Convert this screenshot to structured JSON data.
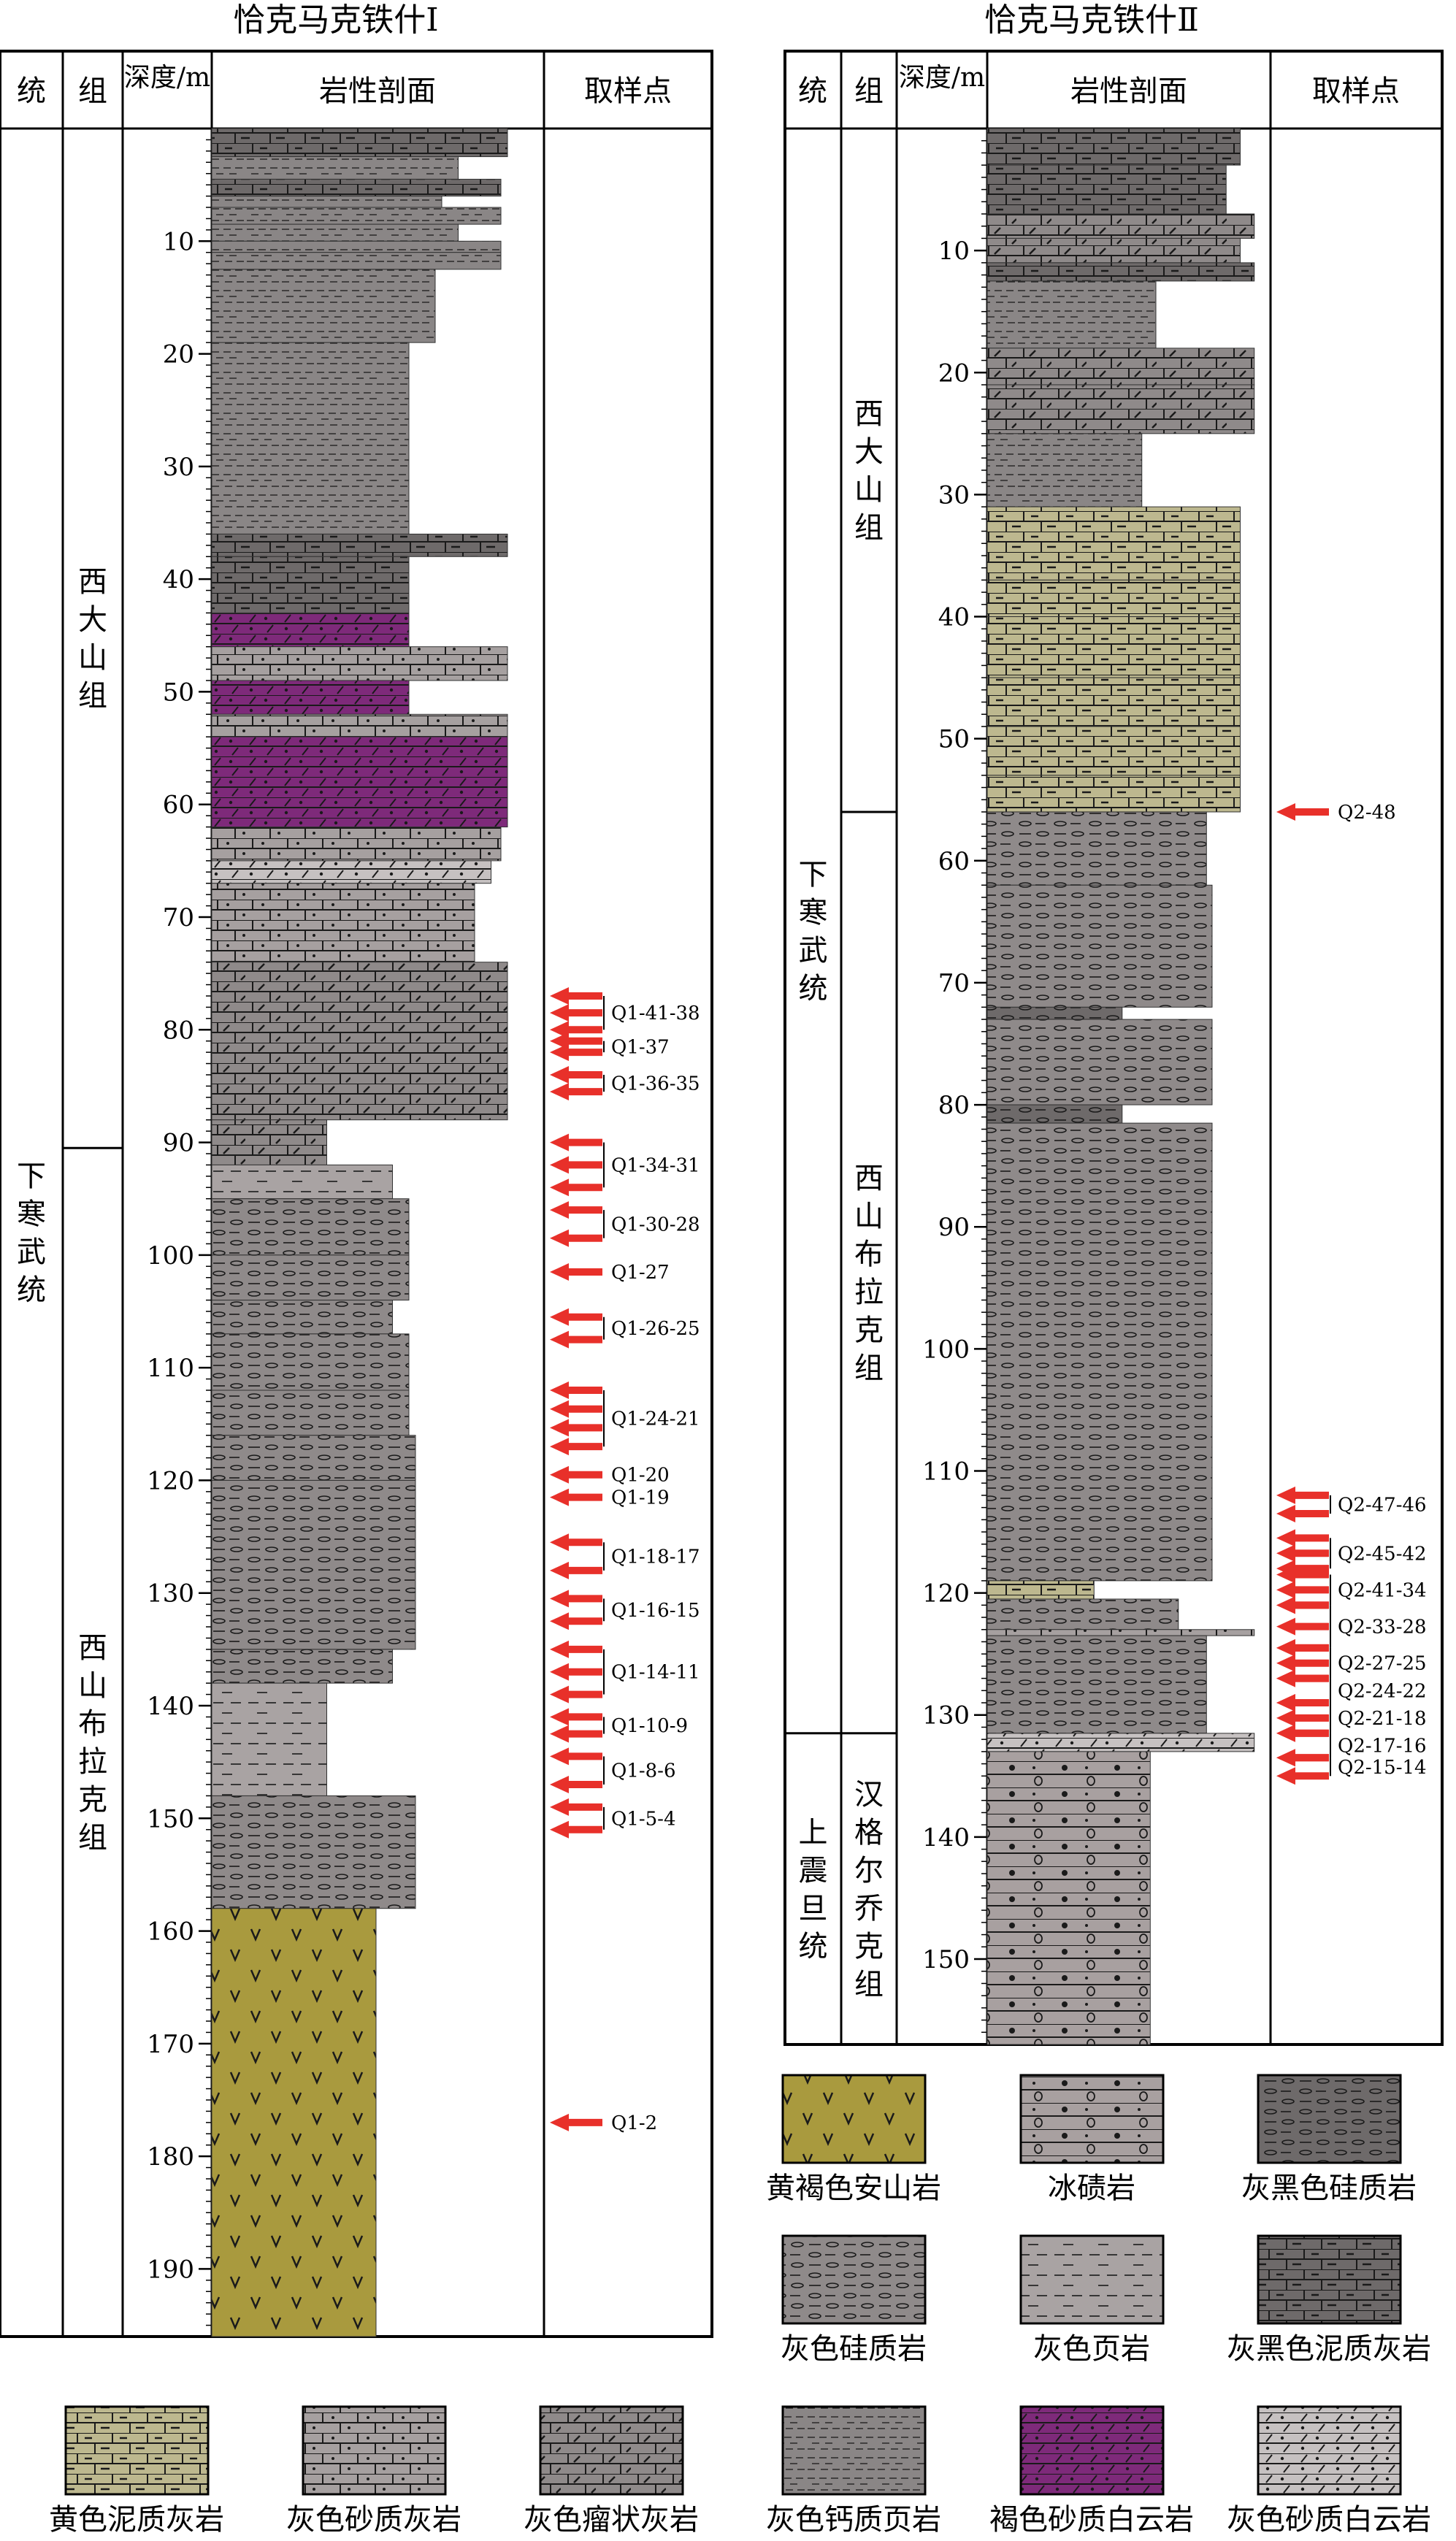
{
  "columns": [
    {
      "title": "恰克马克铁什Ⅰ",
      "headers": {
        "series": "统",
        "formation": "组",
        "depth": "深度/m",
        "lith": "岩性剖面",
        "samples": "取样点"
      },
      "depth_range_m": [
        0,
        196
      ],
      "depth_ticks": [
        "10",
        "20",
        "30",
        "40",
        "50",
        "60",
        "70",
        "80",
        "90",
        "100",
        "110",
        "120",
        "130",
        "140",
        "150",
        "160",
        "170",
        "180",
        "190"
      ],
      "series_units": [
        {
          "label": "下寒武统",
          "from": 0,
          "to": 196
        }
      ],
      "formation_units": [
        {
          "label": "西大山组",
          "from": 0,
          "to": 90.5
        },
        {
          "label": "西山布拉克组",
          "from": 90.5,
          "to": 196
        }
      ],
      "layers": [
        {
          "from": 0,
          "to": 2.5,
          "lith": "dark-marly-limestone",
          "w": 0.9
        },
        {
          "from": 2.5,
          "to": 4.5,
          "lith": "gray-calcareous-shale",
          "w": 0.75
        },
        {
          "from": 4.5,
          "to": 6,
          "lith": "dark-marly-limestone",
          "w": 0.88
        },
        {
          "from": 6,
          "to": 7,
          "lith": "gray-calcareous-shale",
          "w": 0.7
        },
        {
          "from": 7,
          "to": 8.5,
          "lith": "gray-calcareous-shale",
          "w": 0.88
        },
        {
          "from": 8.5,
          "to": 10,
          "lith": "gray-calcareous-shale",
          "w": 0.75
        },
        {
          "from": 10,
          "to": 11,
          "lith": "gray-calcareous-shale",
          "w": 0.88
        },
        {
          "from": 11,
          "to": 12.5,
          "lith": "gray-calcareous-shale",
          "w": 0.88
        },
        {
          "from": 12.5,
          "to": 19,
          "lith": "gray-calcareous-shale",
          "w": 0.68
        },
        {
          "from": 19,
          "to": 36,
          "lith": "gray-calcareous-shale",
          "w": 0.6
        },
        {
          "from": 36,
          "to": 38,
          "lith": "dark-marly-limestone",
          "w": 0.9
        },
        {
          "from": 38,
          "to": 43,
          "lith": "dark-marly-limestone",
          "w": 0.6
        },
        {
          "from": 43,
          "to": 46,
          "lith": "brown-sandy-dolomite",
          "w": 0.6
        },
        {
          "from": 46,
          "to": 49,
          "lith": "gray-sandy-limestone",
          "w": 0.9
        },
        {
          "from": 49,
          "to": 52,
          "lith": "brown-sandy-dolomite",
          "w": 0.6
        },
        {
          "from": 52,
          "to": 54,
          "lith": "gray-sandy-limestone",
          "w": 0.9
        },
        {
          "from": 54,
          "to": 62,
          "lith": "brown-sandy-dolomite",
          "w": 0.9
        },
        {
          "from": 62,
          "to": 65,
          "lith": "gray-sandy-limestone",
          "w": 0.88
        },
        {
          "from": 65,
          "to": 67,
          "lith": "gray-sandy-dolomite",
          "w": 0.85
        },
        {
          "from": 67,
          "to": 74,
          "lith": "gray-sandy-limestone",
          "w": 0.8
        },
        {
          "from": 74,
          "to": 88,
          "lith": "gray-nodular-limestone",
          "w": 0.9
        },
        {
          "from": 88,
          "to": 92,
          "lith": "gray-nodular-limestone",
          "w": 0.35
        },
        {
          "from": 92,
          "to": 95,
          "lith": "gray-shale",
          "w": 0.55
        },
        {
          "from": 95,
          "to": 100,
          "lith": "gray-siliceous-rock",
          "w": 0.6
        },
        {
          "from": 100,
          "to": 104,
          "lith": "gray-siliceous-rock",
          "w": 0.6
        },
        {
          "from": 104,
          "to": 107,
          "lith": "gray-siliceous-rock",
          "w": 0.55
        },
        {
          "from": 107,
          "to": 112,
          "lith": "gray-siliceous-rock",
          "w": 0.6
        },
        {
          "from": 112,
          "to": 116,
          "lith": "gray-siliceous-rock",
          "w": 0.6
        },
        {
          "from": 116,
          "to": 120,
          "lith": "gray-siliceous-rock",
          "w": 0.62
        },
        {
          "from": 120,
          "to": 135,
          "lith": "gray-siliceous-rock",
          "w": 0.62
        },
        {
          "from": 135,
          "to": 138,
          "lith": "gray-siliceous-rock",
          "w": 0.55
        },
        {
          "from": 138,
          "to": 148,
          "lith": "gray-shale",
          "w": 0.35
        },
        {
          "from": 148,
          "to": 158,
          "lith": "gray-siliceous-rock",
          "w": 0.62
        },
        {
          "from": 158,
          "to": 196,
          "lith": "yellow-brown-andesite",
          "w": 0.5
        }
      ],
      "samples": [
        {
          "label": "Q1-41-38",
          "from": 77,
          "to": 80
        },
        {
          "label": "Q1-37",
          "from": 81,
          "to": 82
        },
        {
          "label": "Q1-36-35",
          "from": 84,
          "to": 85.5
        },
        {
          "label": "Q1-34-31",
          "from": 90,
          "to": 94
        },
        {
          "label": "Q1-30-28",
          "from": 96,
          "to": 98.5
        },
        {
          "label": "Q1-27",
          "from": 101.5,
          "to": 101.5
        },
        {
          "label": "Q1-26-25",
          "from": 105.5,
          "to": 107.5
        },
        {
          "label": "Q1-24-21",
          "from": 112,
          "to": 117
        },
        {
          "label": "Q1-20",
          "from": 119.5,
          "to": 119.5
        },
        {
          "label": "Q1-19",
          "from": 121.5,
          "to": 121.5
        },
        {
          "label": "Q1-18-17",
          "from": 125.5,
          "to": 128
        },
        {
          "label": "Q1-16-15",
          "from": 130.5,
          "to": 132.5
        },
        {
          "label": "Q1-14-11",
          "from": 135,
          "to": 139
        },
        {
          "label": "Q1-10-9",
          "from": 141,
          "to": 142.5
        },
        {
          "label": "Q1-8-6",
          "from": 144.5,
          "to": 147
        },
        {
          "label": "Q1-5-4",
          "from": 149,
          "to": 151
        },
        {
          "label": "Q1-2",
          "from": 177,
          "to": 177
        }
      ]
    },
    {
      "title": "恰克马克铁什Ⅱ",
      "headers": {
        "series": "统",
        "formation": "组",
        "depth": "深度/m",
        "lith": "岩性剖面",
        "samples": "取样点"
      },
      "depth_range_m": [
        0,
        157
      ],
      "depth_ticks": [
        "10",
        "20",
        "30",
        "40",
        "50",
        "60",
        "70",
        "80",
        "90",
        "100",
        "110",
        "120",
        "130",
        "140",
        "150"
      ],
      "series_units": [
        {
          "label": "下寒武统",
          "from": 0,
          "to": 131.5
        },
        {
          "label": "上震旦统",
          "from": 131.5,
          "to": 157
        }
      ],
      "formation_units": [
        {
          "label": "西大山组",
          "from": 0,
          "to": 56
        },
        {
          "label": "西山布拉克组",
          "from": 56,
          "to": 131.5
        },
        {
          "label": "汉格尔乔克组",
          "from": 131.5,
          "to": 157
        }
      ],
      "layers": [
        {
          "from": 0,
          "to": 3,
          "lith": "dark-marly-limestone",
          "w": 0.9
        },
        {
          "from": 3,
          "to": 7,
          "lith": "dark-marly-limestone",
          "w": 0.85
        },
        {
          "from": 7,
          "to": 9,
          "lith": "gray-nodular-limestone",
          "w": 0.95
        },
        {
          "from": 9,
          "to": 11,
          "lith": "gray-nodular-limestone",
          "w": 0.9
        },
        {
          "from": 11,
          "to": 12.5,
          "lith": "dark-marly-limestone",
          "w": 0.95
        },
        {
          "from": 12.5,
          "to": 18,
          "lith": "gray-calcareous-shale",
          "w": 0.6
        },
        {
          "from": 18,
          "to": 21,
          "lith": "gray-nodular-limestone",
          "w": 0.95
        },
        {
          "from": 21,
          "to": 23,
          "lith": "gray-nodular-limestone",
          "w": 0.95
        },
        {
          "from": 23,
          "to": 25,
          "lith": "gray-nodular-limestone",
          "w": 0.95
        },
        {
          "from": 25,
          "to": 31,
          "lith": "gray-calcareous-shale",
          "w": 0.55
        },
        {
          "from": 31,
          "to": 37,
          "lith": "yellow-marly-limestone",
          "w": 0.9
        },
        {
          "from": 37,
          "to": 40,
          "lith": "yellow-marly-limestone",
          "w": 0.9
        },
        {
          "from": 40,
          "to": 45,
          "lith": "yellow-marly-limestone",
          "w": 0.9
        },
        {
          "from": 45,
          "to": 49,
          "lith": "yellow-marly-limestone",
          "w": 0.9
        },
        {
          "from": 49,
          "to": 53,
          "lith": "yellow-marly-limestone",
          "w": 0.9
        },
        {
          "from": 53,
          "to": 56,
          "lith": "yellow-marly-limestone",
          "w": 0.9
        },
        {
          "from": 56,
          "to": 62,
          "lith": "gray-siliceous-rock",
          "w": 0.78
        },
        {
          "from": 62,
          "to": 72,
          "lith": "gray-siliceous-rock",
          "w": 0.8
        },
        {
          "from": 72,
          "to": 73,
          "lith": "dark-siliceous-rock",
          "w": 0.48
        },
        {
          "from": 73,
          "to": 80,
          "lith": "gray-siliceous-rock",
          "w": 0.8
        },
        {
          "from": 80,
          "to": 81.5,
          "lith": "dark-siliceous-rock",
          "w": 0.48
        },
        {
          "from": 81.5,
          "to": 119,
          "lith": "gray-siliceous-rock",
          "w": 0.8
        },
        {
          "from": 119,
          "to": 120.5,
          "lith": "yellow-marly-limestone",
          "w": 0.38
        },
        {
          "from": 120.5,
          "to": 123,
          "lith": "gray-siliceous-rock",
          "w": 0.68
        },
        {
          "from": 123,
          "to": 123.5,
          "lith": "gray-sandy-limestone",
          "w": 0.95
        },
        {
          "from": 123.5,
          "to": 131.5,
          "lith": "gray-siliceous-rock",
          "w": 0.78
        },
        {
          "from": 131.5,
          "to": 133,
          "lith": "gray-sandy-dolomite",
          "w": 0.95
        },
        {
          "from": 133,
          "to": 157,
          "lith": "tillite",
          "w": 0.58
        }
      ],
      "samples": [
        {
          "label": "Q2-48",
          "from": 56,
          "to": 56
        },
        {
          "label": "Q2-47-46",
          "from": 112,
          "to": 113.5
        },
        {
          "label": "Q2-45-42",
          "from": 115.5,
          "to": 118
        },
        {
          "label": "Q2-41-34",
          "from": 118.5,
          "to": 121
        },
        {
          "label": "Q2-33-28",
          "from": 121,
          "to": 124.5
        },
        {
          "label": "Q2-27-25",
          "from": 124.5,
          "to": 127
        },
        {
          "label": "Q2-24-22",
          "from": 127,
          "to": 129
        },
        {
          "label": "Q2-21-18",
          "from": 129,
          "to": 131.5
        },
        {
          "label": "Q2-17-16",
          "from": 131.5,
          "to": 133.5
        },
        {
          "label": "Q2-15-14",
          "from": 133.5,
          "to": 135
        }
      ]
    }
  ],
  "lithology_styles": {
    "yellow-brown-andesite": {
      "fill": "#A99A3E",
      "pattern": "v"
    },
    "tillite": {
      "fill": "#A8A0A0",
      "pattern": "tillite"
    },
    "dark-siliceous-rock": {
      "fill": "#6E6A6A",
      "pattern": "ellipse"
    },
    "gray-siliceous-rock": {
      "fill": "#8F8A8A",
      "pattern": "ellipse"
    },
    "gray-shale": {
      "fill": "#A9A3A3",
      "pattern": "dash"
    },
    "dark-marly-limestone": {
      "fill": "#6E6A6A",
      "pattern": "brick-dash"
    },
    "yellow-marly-limestone": {
      "fill": "#BDB88F",
      "pattern": "brick-dash"
    },
    "gray-sandy-limestone": {
      "fill": "#A6A0A0",
      "pattern": "brick-dot"
    },
    "gray-nodular-limestone": {
      "fill": "#8F8A8A",
      "pattern": "brick-nodule"
    },
    "gray-calcareous-shale": {
      "fill": "#8A8686",
      "pattern": "fine-dash"
    },
    "brown-sandy-dolomite": {
      "fill": "#7E2A7A",
      "pattern": "slash-dot"
    },
    "gray-sandy-dolomite": {
      "fill": "#C6C1C1",
      "pattern": "slash-dot"
    }
  },
  "legend": [
    {
      "lith": "yellow-brown-andesite",
      "label": "黄褐色安山岩"
    },
    {
      "lith": "tillite",
      "label": "冰碛岩"
    },
    {
      "lith": "dark-siliceous-rock",
      "label": "灰黑色硅质岩"
    },
    {
      "lith": "gray-siliceous-rock",
      "label": "灰色硅质岩"
    },
    {
      "lith": "gray-shale",
      "label": "灰色页岩"
    },
    {
      "lith": "dark-marly-limestone",
      "label": "灰黑色泥质灰岩"
    },
    {
      "lith": "yellow-marly-limestone",
      "label": "黄色泥质灰岩"
    },
    {
      "lith": "gray-sandy-limestone",
      "label": "灰色砂质灰岩"
    },
    {
      "lith": "gray-nodular-limestone",
      "label": "灰色瘤状灰岩"
    },
    {
      "lith": "gray-calcareous-shale",
      "label": "灰色钙质页岩"
    },
    {
      "lith": "brown-sandy-dolomite",
      "label": "褐色砂质白云岩"
    },
    {
      "lith": "gray-sandy-dolomite",
      "label": "灰色砂质白云岩"
    }
  ],
  "sample_arrow_color": "#E8302A"
}
